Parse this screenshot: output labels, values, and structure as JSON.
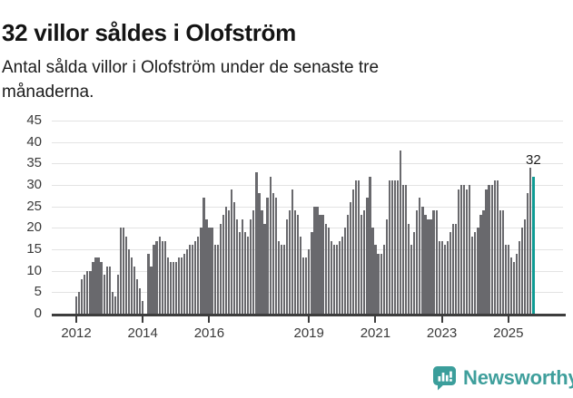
{
  "header": {
    "title": "32 villor såldes i Olofström",
    "subtitle_lines": [
      "Antal sålda villor i Olofström under de senaste tre",
      "månaderna."
    ]
  },
  "footer": {
    "logo_text": "Newsworthy",
    "logo_icon": "newsworthy-speech-bubble-bar-chart-icon",
    "logo_color": "#3f9f9c"
  },
  "chart_data": {
    "type": "bar",
    "title": "32 villor såldes i Olofström",
    "ylabel": "",
    "xlabel": "",
    "frequency": "monthly",
    "start_year": 2012,
    "start_month": "2012-01",
    "end_month": "2025-10",
    "ylim": [
      0,
      45
    ],
    "y_tick_step": 5,
    "y_tick_labels": [
      0,
      5,
      10,
      15,
      20,
      25,
      30,
      35,
      40,
      45
    ],
    "x_tick_years": [
      2012,
      2014,
      2016,
      2019,
      2021,
      2023,
      2025
    ],
    "grid": "horizontal",
    "legend": "none",
    "bar_color": "#69696d",
    "highlight_color": "#0f9b94",
    "highlight_index": 165,
    "highlight_value_label": "32",
    "values": [
      4,
      5,
      8,
      9,
      10,
      10,
      12,
      13,
      13,
      12,
      9,
      11,
      11,
      5,
      4,
      9,
      20,
      20,
      18,
      15,
      13,
      11,
      8,
      6,
      3,
      0,
      14,
      11,
      16,
      17,
      18,
      17,
      17,
      13,
      12,
      12,
      12,
      13,
      13,
      14,
      15,
      16,
      16,
      17,
      18,
      20,
      27,
      22,
      20,
      20,
      16,
      16,
      21,
      23,
      25,
      24,
      29,
      26,
      22,
      19,
      22,
      19,
      18,
      22,
      24,
      33,
      28,
      24,
      21,
      27,
      32,
      28,
      27,
      17,
      16,
      16,
      22,
      24,
      29,
      24,
      23,
      18,
      13,
      13,
      15,
      19,
      25,
      25,
      23,
      23,
      21,
      20,
      17,
      16,
      16,
      17,
      18,
      20,
      23,
      26,
      29,
      31,
      31,
      23,
      24,
      27,
      32,
      20,
      16,
      14,
      14,
      16,
      22,
      31,
      31,
      31,
      31,
      38,
      30,
      30,
      21,
      16,
      19,
      24,
      27,
      25,
      23,
      22,
      22,
      24,
      24,
      17,
      17,
      16,
      17,
      19,
      21,
      21,
      29,
      30,
      30,
      29,
      30,
      18,
      19,
      20,
      23,
      24,
      29,
      30,
      30,
      31,
      31,
      24,
      24,
      16,
      16,
      13,
      12,
      14,
      17,
      20,
      22,
      28,
      34,
      32
    ]
  }
}
